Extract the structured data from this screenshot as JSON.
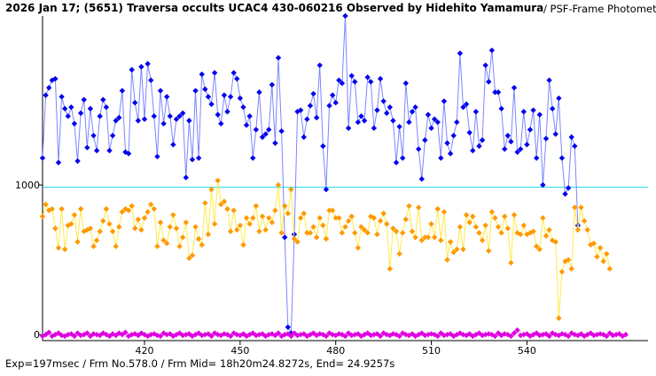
{
  "header": {
    "title_bold": "2026 Jan 17; (5651) Traversa occults UCAC4 430-060216 Observed by Hidehito Yamamura",
    "title_suffix": " / PSF-Frame Photometry /"
  },
  "footer": {
    "text": "Exp=197msec / Frm No.578.0 / Frm Mid= 18h20m24.8272s,  End= 24.9257s"
  },
  "chart_data": {
    "type": "line",
    "x_ticks": [
      420,
      450,
      480,
      510,
      540
    ],
    "y_ticks": [
      0,
      1000
    ],
    "xlim": [
      388,
      578
    ],
    "ylim": [
      -40,
      2130
    ],
    "reference_line": {
      "y": 985,
      "color": "#40e0f0"
    },
    "grid": false,
    "series": [
      {
        "color": "#0000ee",
        "line_color": "#7c86ff",
        "x_start": 388,
        "values": [
          1180,
          1600,
          1650,
          1700,
          1710,
          1150,
          1590,
          1510,
          1460,
          1520,
          1410,
          1160,
          1480,
          1570,
          1250,
          1510,
          1330,
          1230,
          1460,
          1570,
          1520,
          1230,
          1330,
          1430,
          1450,
          1630,
          1220,
          1210,
          1770,
          1550,
          1430,
          1790,
          1440,
          1810,
          1700,
          1460,
          1190,
          1630,
          1410,
          1590,
          1460,
          1270,
          1440,
          1460,
          1480,
          1050,
          1430,
          1170,
          1630,
          1180,
          1740,
          1640,
          1590,
          1540,
          1750,
          1470,
          1410,
          1600,
          1490,
          1590,
          1750,
          1710,
          1580,
          1520,
          1400,
          1460,
          1180,
          1370,
          1620,
          1320,
          1340,
          1370,
          1670,
          1280,
          1850,
          1360,
          650,
          50,
          10,
          670,
          1490,
          1500,
          1320,
          1440,
          1530,
          1610,
          1450,
          1800,
          1260,
          970,
          1530,
          1600,
          1550,
          1700,
          1680,
          2130,
          1380,
          1730,
          1690,
          1420,
          1460,
          1430,
          1720,
          1690,
          1380,
          1500,
          1710,
          1560,
          1480,
          1520,
          1430,
          1150,
          1390,
          1180,
          1680,
          1420,
          1490,
          1520,
          1240,
          1040,
          1300,
          1470,
          1380,
          1440,
          1420,
          1180,
          1560,
          1280,
          1210,
          1330,
          1420,
          1880,
          1520,
          1540,
          1350,
          1230,
          1490,
          1260,
          1300,
          1800,
          1690,
          1900,
          1620,
          1620,
          1510,
          1240,
          1330,
          1290,
          1650,
          1220,
          1240,
          1490,
          1270,
          1370,
          1500,
          1180,
          1470,
          1000,
          1310,
          1700,
          1510,
          1340,
          1580,
          1180,
          940,
          980,
          1320,
          1260,
          730
        ]
      },
      {
        "color": "#ff9900",
        "line_color": "#ffea4a",
        "x_start": 388,
        "values": [
          790,
          870,
          830,
          840,
          710,
          580,
          840,
          570,
          730,
          740,
          800,
          620,
          840,
          690,
          700,
          710,
          590,
          630,
          690,
          760,
          840,
          740,
          690,
          590,
          720,
          820,
          840,
          830,
          860,
          710,
          770,
          700,
          780,
          820,
          870,
          840,
          590,
          750,
          630,
          610,
          720,
          800,
          710,
          590,
          650,
          750,
          510,
          530,
          720,
          640,
          600,
          880,
          670,
          970,
          740,
          1030,
          870,
          890,
          840,
          690,
          830,
          700,
          730,
          600,
          780,
          740,
          780,
          860,
          690,
          790,
          700,
          780,
          750,
          830,
          1000,
          680,
          860,
          810,
          970,
          640,
          620,
          780,
          810,
          680,
          680,
          720,
          650,
          780,
          730,
          640,
          830,
          830,
          780,
          780,
          680,
          720,
          760,
          790,
          680,
          580,
          720,
          700,
          680,
          790,
          780,
          670,
          760,
          810,
          740,
          440,
          710,
          690,
          540,
          680,
          770,
          860,
          690,
          650,
          850,
          630,
          650,
          650,
          740,
          650,
          840,
          630,
          820,
          500,
          620,
          550,
          570,
          720,
          570,
          800,
          750,
          790,
          720,
          680,
          630,
          730,
          560,
          820,
          780,
          720,
          680,
          790,
          710,
          480,
          800,
          680,
          670,
          730,
          670,
          680,
          690,
          590,
          570,
          780,
          660,
          700,
          630,
          620,
          110,
          420,
          490,
          500,
          440,
          850,
          700,
          850,
          760,
          700,
          600,
          610,
          520,
          580,
          490,
          540,
          440
        ]
      },
      {
        "color": "#e000e0",
        "line_color": "#f2a7f2",
        "x_start": 388,
        "values": [
          -10,
          0,
          15,
          -10,
          0,
          10,
          -5,
          -10,
          0,
          5,
          -10,
          10,
          -5,
          0,
          10,
          -10,
          5,
          0,
          -5,
          10,
          0,
          -10,
          5,
          -5,
          10,
          0,
          15,
          -10,
          0,
          5,
          -5,
          10,
          0,
          -10,
          0,
          5,
          -5,
          -10,
          10,
          0,
          5,
          -10,
          0,
          10,
          -5,
          0,
          5,
          -10,
          0,
          10,
          -5,
          0,
          5,
          -10,
          10,
          0,
          -5,
          5,
          0,
          -10,
          10,
          0,
          -5,
          5,
          -10,
          0,
          10,
          -5,
          0,
          5,
          -10,
          0,
          5,
          -5,
          10,
          -10,
          0,
          5,
          -10,
          10,
          -5,
          0,
          5,
          -10,
          0,
          10,
          -5,
          5,
          0,
          -10,
          10,
          0,
          -5,
          5,
          0,
          -10,
          10,
          -5,
          0,
          5,
          -10,
          0,
          10,
          -5,
          0,
          5,
          -10,
          10,
          0,
          -5,
          5,
          0,
          -10,
          10,
          0,
          -5,
          5,
          -10,
          0,
          10,
          -5,
          0,
          5,
          0,
          -10,
          10,
          -5,
          0,
          5,
          -10,
          0,
          10,
          0,
          -5,
          5,
          -10,
          0,
          10,
          -5,
          0,
          5,
          0,
          -10,
          10,
          -5,
          5,
          0,
          -10,
          10,
          30,
          -5,
          0,
          5,
          -10,
          0,
          10,
          -5,
          0,
          5,
          -10,
          10,
          0,
          -5,
          5,
          0,
          -10,
          10,
          0,
          -5,
          5,
          -10,
          0,
          10,
          -5,
          0,
          5,
          0,
          -10,
          10,
          -5,
          0,
          5,
          -10,
          0
        ]
      }
    ]
  }
}
